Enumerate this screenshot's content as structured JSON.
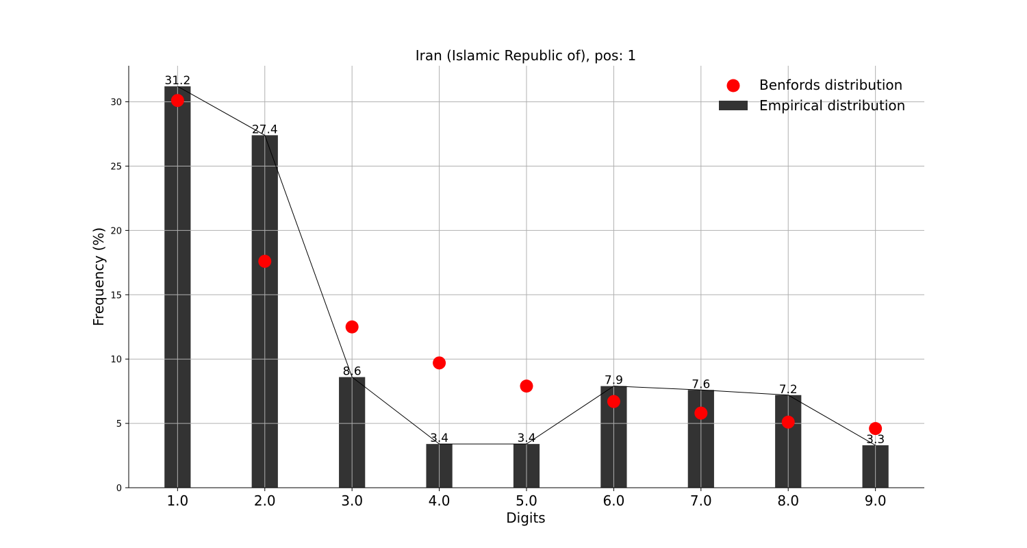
{
  "chart_data": {
    "type": "bar",
    "title": "Iran (Islamic Republic of), pos: 1",
    "xlabel": "Digits",
    "ylabel": "Frequency (%)",
    "x": [
      1.0,
      2.0,
      3.0,
      4.0,
      5.0,
      6.0,
      7.0,
      8.0,
      9.0
    ],
    "x_tick_labels": [
      "1.0",
      "2.0",
      "3.0",
      "4.0",
      "5.0",
      "6.0",
      "7.0",
      "8.0",
      "9.0"
    ],
    "y_ticks": [
      0,
      5,
      10,
      15,
      20,
      25,
      30
    ],
    "y_tick_labels": [
      "0",
      "5",
      "10",
      "15",
      "20",
      "25",
      "30"
    ],
    "ylim": [
      0,
      32.8
    ],
    "xlim": [
      0.44,
      9.56
    ],
    "grid": true,
    "legend_position": "top-right",
    "series": [
      {
        "name": "Empirical distribution",
        "kind": "bar",
        "color": "#333333",
        "values": [
          31.2,
          27.4,
          8.6,
          3.4,
          3.4,
          7.9,
          7.6,
          7.2,
          3.3
        ],
        "labels": [
          "31.2",
          "27.4",
          "8.6",
          "3.4",
          "3.4",
          "7.9",
          "7.6",
          "7.2",
          "3.3"
        ]
      },
      {
        "name": "Benfords distribution",
        "kind": "scatter",
        "color": "#ff0000",
        "values": [
          30.1,
          17.6,
          12.5,
          9.7,
          7.9,
          6.7,
          5.8,
          5.1,
          4.6
        ]
      }
    ],
    "connector_line_color": "#000000"
  }
}
